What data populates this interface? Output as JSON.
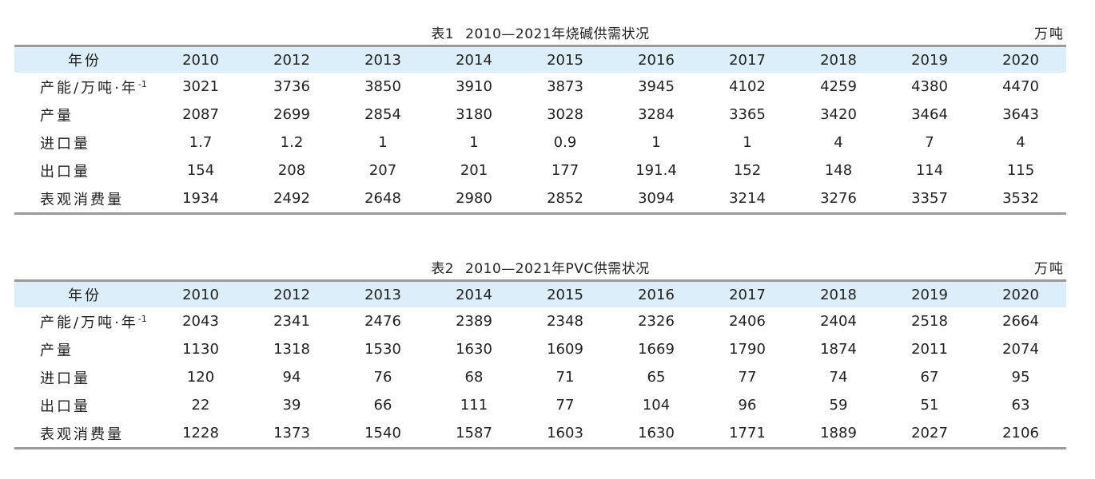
{
  "tables": [
    {
      "label": "表1",
      "title": "2010—2021年烧碱供需状况",
      "unit": "万吨",
      "header_label": "年份",
      "years": [
        "2010",
        "2012",
        "2013",
        "2014",
        "2015",
        "2016",
        "2017",
        "2018",
        "2019",
        "2020"
      ],
      "rows": [
        {
          "label": "产能/万吨·年",
          "sup": "-1",
          "values": [
            "3021",
            "3736",
            "3850",
            "3910",
            "3873",
            "3945",
            "4102",
            "4259",
            "4380",
            "4470"
          ]
        },
        {
          "label": "产量",
          "sup": "",
          "values": [
            "2087",
            "2699",
            "2854",
            "3180",
            "3028",
            "3284",
            "3365",
            "3420",
            "3464",
            "3643"
          ]
        },
        {
          "label": "进口量",
          "sup": "",
          "values": [
            "1.7",
            "1.2",
            "1",
            "1",
            "0.9",
            "1",
            "1",
            "4",
            "7",
            "4"
          ]
        },
        {
          "label": "出口量",
          "sup": "",
          "values": [
            "154",
            "208",
            "207",
            "201",
            "177",
            "191.4",
            "152",
            "148",
            "114",
            "115"
          ]
        },
        {
          "label": "表观消费量",
          "sup": "",
          "values": [
            "1934",
            "2492",
            "2648",
            "2980",
            "2852",
            "3094",
            "3214",
            "3276",
            "3357",
            "3532"
          ]
        }
      ]
    },
    {
      "label": "表2",
      "title": "2010—2021年PVC供需状况",
      "unit": "万吨",
      "header_label": "年份",
      "years": [
        "2010",
        "2012",
        "2013",
        "2014",
        "2015",
        "2016",
        "2017",
        "2018",
        "2019",
        "2020"
      ],
      "rows": [
        {
          "label": "产能/万吨·年",
          "sup": "-1",
          "values": [
            "2043",
            "2341",
            "2476",
            "2389",
            "2348",
            "2326",
            "2406",
            "2404",
            "2518",
            "2664"
          ]
        },
        {
          "label": "产量",
          "sup": "",
          "values": [
            "1130",
            "1318",
            "1530",
            "1630",
            "1609",
            "1669",
            "1790",
            "1874",
            "2011",
            "2074"
          ]
        },
        {
          "label": "进口量",
          "sup": "",
          "values": [
            "120",
            "94",
            "76",
            "68",
            "71",
            "65",
            "77",
            "74",
            "67",
            "95"
          ]
        },
        {
          "label": "出口量",
          "sup": "",
          "values": [
            "22",
            "39",
            "66",
            "111",
            "77",
            "104",
            "96",
            "59",
            "51",
            "63"
          ]
        },
        {
          "label": "表观消费量",
          "sup": "",
          "values": [
            "1228",
            "1373",
            "1540",
            "1587",
            "1603",
            "1630",
            "1771",
            "1889",
            "2027",
            "2106"
          ]
        }
      ]
    }
  ]
}
